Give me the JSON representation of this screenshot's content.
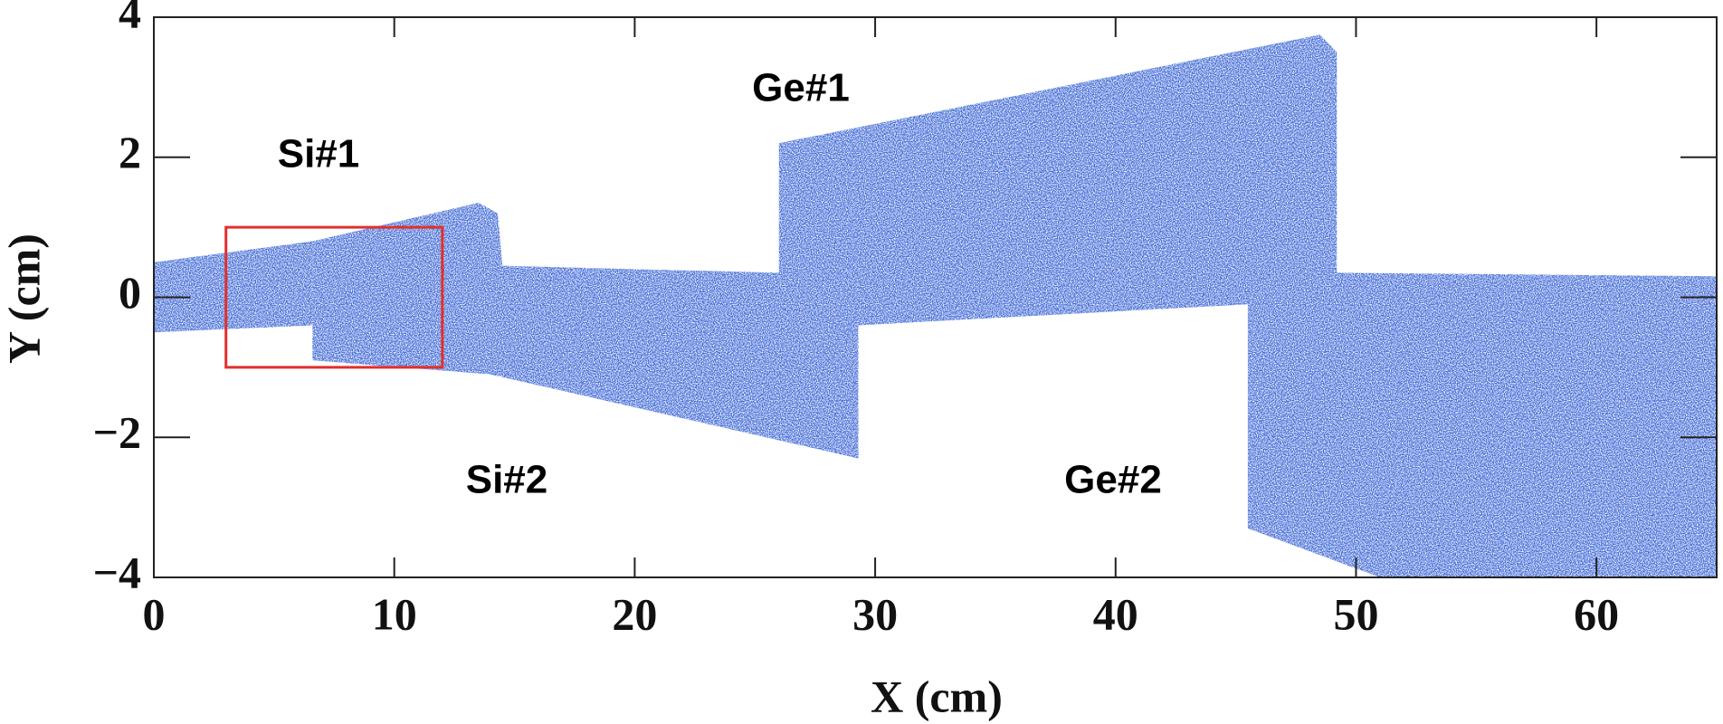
{
  "chart_data": {
    "type": "region",
    "x_label": "X (cm)",
    "y_label": "Y (cm)",
    "xlim": [
      0,
      65
    ],
    "ylim": [
      -4,
      4
    ],
    "xticks": [
      0,
      10,
      20,
      30,
      40,
      50,
      60
    ],
    "yticks": [
      {
        "value": -4,
        "label": "−4"
      },
      {
        "value": -2,
        "label": "−2"
      },
      0,
      2,
      4
    ],
    "color": "#3a6fdc",
    "regions": [
      {
        "x": [
          0,
          6.6,
          6.6,
          0
        ],
        "y": [
          0.5,
          0.8,
          -0.4,
          -0.5
        ]
      },
      {
        "x": [
          6.6,
          13.5,
          14.3,
          14.5,
          26,
          29.3,
          29.3,
          14,
          6.6
        ],
        "y": [
          0.8,
          1.35,
          1.2,
          0.45,
          0.35,
          0.2,
          -2.3,
          -1.1,
          -0.9
        ]
      },
      {
        "x": [
          26,
          48.5,
          49.2,
          49.2,
          45.5,
          29.3,
          29.3,
          26
        ],
        "y": [
          2.2,
          3.75,
          3.5,
          0.2,
          -0.1,
          -0.4,
          0.2,
          0.3
        ]
      },
      {
        "x": [
          45.5,
          49.2,
          49.2,
          65,
          65,
          51,
          45.5
        ],
        "y": [
          -0.1,
          0.2,
          0.35,
          0.3,
          -4,
          -4,
          -3.3
        ]
      }
    ],
    "box": {
      "x": [
        3,
        12
      ],
      "y": [
        -1,
        1
      ],
      "color": "#e0302c"
    },
    "annotations": [
      "Si#1",
      "Ge#1",
      "Si#2",
      "Ge#2"
    ]
  }
}
